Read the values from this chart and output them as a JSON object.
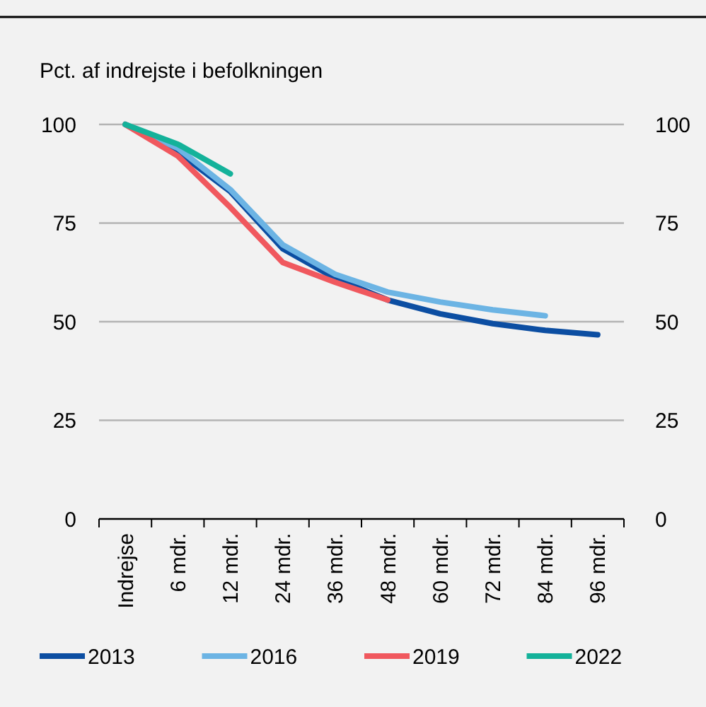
{
  "chart_data": {
    "type": "line",
    "ylabel": "Pct. af indrejste i befolkningen",
    "categories": [
      "Indrejse",
      "6 mdr.",
      "12 mdr.",
      "24 mdr.",
      "36 mdr.",
      "48 mdr.",
      "60 mdr.",
      "72 mdr.",
      "84 mdr.",
      "96 mdr."
    ],
    "series": [
      {
        "name": "2013",
        "color": "#0c4ea2",
        "values": [
          100,
          93,
          83,
          68.5,
          61,
          55.5,
          52,
          49.5,
          47.8,
          46.7
        ]
      },
      {
        "name": "2016",
        "color": "#6cb4e4",
        "values": [
          100,
          94,
          83.5,
          69.5,
          62,
          57.5,
          55,
          53,
          51.5,
          null
        ]
      },
      {
        "name": "2019",
        "color": "#f0585e",
        "values": [
          100,
          92,
          79,
          65,
          60,
          55.5,
          null,
          null,
          null,
          null
        ]
      },
      {
        "name": "2022",
        "color": "#14b29a",
        "values": [
          100,
          95,
          87.5,
          null,
          null,
          null,
          null,
          null,
          null,
          null
        ]
      }
    ],
    "ylim": [
      0,
      100
    ],
    "yticks": [
      0,
      25,
      50,
      75,
      100
    ],
    "y2lim": [
      0,
      100
    ],
    "y2ticks": [
      0,
      25,
      50,
      75,
      100
    ],
    "grid": "y",
    "legend": "bottom",
    "marker": "none",
    "line_style": "solid"
  }
}
